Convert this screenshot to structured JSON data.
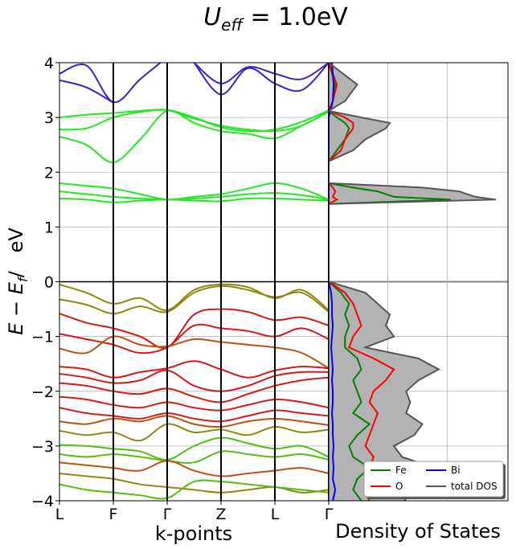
{
  "chart_data": [
    {
      "type": "line",
      "panel": "band-structure",
      "title_prefix": "U",
      "title_sub": "eff",
      "title_suffix": " = 1.0eV",
      "xlabel": "k-points",
      "ylabel": "E − E",
      "ylabel_sub": "f",
      "ylabel_unit": "/   eV",
      "ylim": [
        -4,
        4
      ],
      "yticks": [
        -4,
        -3,
        -2,
        -1,
        0,
        1,
        2,
        3,
        4
      ],
      "kpoint_labels": [
        "L",
        "F",
        "Γ",
        "Z",
        "L",
        "Γ"
      ],
      "kpoint_positions": [
        0,
        1,
        2,
        3,
        4,
        5
      ],
      "fermi_level": 0,
      "grid": true,
      "bands": [
        {
          "color": "#3e1fc8",
          "x": [
            0,
            0.5,
            1,
            1.5,
            2
          ],
          "y": [
            3.8,
            3.95,
            3.28,
            3.7,
            4.1
          ]
        },
        {
          "color": "#3e1fc8",
          "x": [
            0,
            0.5,
            1
          ],
          "y": [
            3.68,
            3.55,
            3.27
          ]
        },
        {
          "color": "#3e1fc8",
          "x": [
            2.5,
            3,
            3.5,
            4,
            4.5,
            5
          ],
          "y": [
            4.0,
            3.42,
            3.9,
            3.62,
            3.5,
            4.0
          ]
        },
        {
          "color": "#3e1fc8",
          "x": [
            2.5,
            3,
            3.5,
            4,
            4.5,
            5
          ],
          "y": [
            4.0,
            3.62,
            3.92,
            3.8,
            3.7,
            4.0
          ]
        },
        {
          "color": "#20ea20",
          "x": [
            0,
            0.5,
            1,
            1.5,
            2,
            2.5,
            3,
            3.5,
            4,
            4.5,
            5
          ],
          "y": [
            3.0,
            3.05,
            3.08,
            3.12,
            3.14,
            3.0,
            2.82,
            2.75,
            2.78,
            2.92,
            3.13
          ]
        },
        {
          "color": "#20ea20",
          "x": [
            0,
            0.5,
            1,
            1.5,
            2,
            2.5,
            3,
            3.5,
            4,
            4.5,
            5
          ],
          "y": [
            2.78,
            2.8,
            3.0,
            3.1,
            3.13,
            2.98,
            2.85,
            2.78,
            2.75,
            2.85,
            3.12
          ]
        },
        {
          "color": "#20ea20",
          "x": [
            0,
            0.5,
            1,
            1.5,
            2,
            2.5,
            3,
            3.5,
            4,
            4.5,
            5
          ],
          "y": [
            2.65,
            2.5,
            2.18,
            2.6,
            3.12,
            2.9,
            2.75,
            2.7,
            2.62,
            2.85,
            3.1
          ]
        },
        {
          "color": "#20ea20",
          "x": [
            0,
            0.5,
            1,
            1.5,
            2,
            2.5,
            3,
            3.5,
            4,
            4.5,
            5
          ],
          "y": [
            1.8,
            1.75,
            1.7,
            1.6,
            1.5,
            1.55,
            1.6,
            1.7,
            1.8,
            1.7,
            1.5
          ]
        },
        {
          "color": "#20ea20",
          "x": [
            0,
            0.5,
            1,
            1.5,
            2,
            2.5,
            3,
            3.5,
            4,
            4.5,
            5
          ],
          "y": [
            1.65,
            1.6,
            1.55,
            1.52,
            1.5,
            1.52,
            1.55,
            1.6,
            1.62,
            1.58,
            1.5
          ]
        },
        {
          "color": "#20ea20",
          "x": [
            0,
            0.5,
            1,
            1.5,
            2,
            2.5,
            3,
            3.5,
            4,
            4.5,
            5
          ],
          "y": [
            1.52,
            1.5,
            1.45,
            1.48,
            1.5,
            1.48,
            1.47,
            1.52,
            1.52,
            1.5,
            1.48
          ]
        },
        {
          "color": "#8a8a10",
          "x": [
            0,
            0.5,
            1,
            1.5,
            2,
            2.5,
            3,
            3.5,
            4,
            4.5,
            5
          ],
          "y": [
            -0.05,
            -0.2,
            -0.4,
            -0.3,
            -0.52,
            -0.15,
            -0.05,
            -0.1,
            -0.3,
            -0.15,
            -0.52
          ]
        },
        {
          "color": "#8a8a10",
          "x": [
            0,
            0.5,
            1,
            1.5,
            2,
            2.5,
            3,
            3.5,
            4,
            4.5,
            5
          ],
          "y": [
            -0.32,
            -0.42,
            -0.58,
            -0.45,
            -0.55,
            -0.2,
            -0.08,
            -0.15,
            -0.28,
            -0.2,
            -0.55
          ]
        },
        {
          "color": "#d81818",
          "x": [
            0,
            0.5,
            1,
            1.5,
            2,
            2.5,
            3,
            3.5,
            4,
            4.5,
            5
          ],
          "y": [
            -0.58,
            -0.75,
            -0.85,
            -1.0,
            -1.2,
            -0.6,
            -0.5,
            -0.55,
            -0.7,
            -0.65,
            -0.8
          ]
        },
        {
          "color": "#d81818",
          "x": [
            0,
            0.5,
            1,
            1.5,
            2,
            2.5,
            3,
            3.5,
            4,
            4.5,
            5
          ],
          "y": [
            -0.95,
            -1.05,
            -1.15,
            -1.3,
            -1.2,
            -0.8,
            -0.85,
            -0.9,
            -1.0,
            -0.85,
            -1.05
          ]
        },
        {
          "color": "#c05010",
          "x": [
            0,
            0.5,
            1,
            1.5,
            2,
            2.5,
            3,
            3.5,
            4,
            4.5,
            5
          ],
          "y": [
            -1.22,
            -1.3,
            -1.0,
            -1.15,
            -1.18,
            -1.05,
            -1.1,
            -1.15,
            -1.2,
            -1.3,
            -1.58
          ]
        },
        {
          "color": "#d81818",
          "x": [
            0,
            0.5,
            1,
            1.5,
            2,
            2.5,
            3,
            3.5,
            4,
            4.5,
            5
          ],
          "y": [
            -1.55,
            -1.6,
            -1.75,
            -1.65,
            -1.58,
            -1.45,
            -1.6,
            -1.75,
            -1.62,
            -1.55,
            -1.58
          ]
        },
        {
          "color": "#d81818",
          "x": [
            0,
            0.5,
            1,
            1.5,
            2,
            2.5,
            3,
            3.5,
            4,
            4.5,
            5
          ],
          "y": [
            -1.68,
            -1.75,
            -1.85,
            -1.8,
            -1.62,
            -1.9,
            -2.0,
            -1.9,
            -1.72,
            -1.65,
            -1.65
          ]
        },
        {
          "color": "#d81818",
          "x": [
            0,
            0.5,
            1,
            1.5,
            2,
            2.5,
            3,
            3.5,
            4,
            4.5,
            5
          ],
          "y": [
            -1.85,
            -1.9,
            -2.0,
            -2.05,
            -1.95,
            -2.1,
            -2.2,
            -2.05,
            -1.9,
            -1.8,
            -1.75
          ]
        },
        {
          "color": "#d81818",
          "x": [
            0,
            0.5,
            1,
            1.5,
            2,
            2.5,
            3,
            3.5,
            4,
            4.5,
            5
          ],
          "y": [
            -2.1,
            -2.15,
            -2.25,
            -2.3,
            -2.2,
            -2.3,
            -2.35,
            -2.25,
            -2.15,
            -2.2,
            -2.3
          ]
        },
        {
          "color": "#d81818",
          "x": [
            0,
            0.5,
            1,
            1.5,
            2,
            2.5,
            3,
            3.5,
            4,
            4.5,
            5
          ],
          "y": [
            -2.3,
            -2.4,
            -2.45,
            -2.5,
            -2.4,
            -2.5,
            -2.55,
            -2.45,
            -2.35,
            -2.4,
            -2.45
          ]
        },
        {
          "color": "#c05010",
          "x": [
            0,
            0.5,
            1,
            1.5,
            2,
            2.5,
            3,
            3.5,
            4,
            4.5,
            5
          ],
          "y": [
            -2.55,
            -2.6,
            -2.5,
            -2.55,
            -2.45,
            -2.6,
            -2.65,
            -2.55,
            -2.5,
            -2.55,
            -2.62
          ]
        },
        {
          "color": "#8a8a10",
          "x": [
            0,
            0.5,
            1,
            1.5,
            2,
            2.5,
            3,
            3.5,
            4,
            4.5,
            5
          ],
          "y": [
            -2.72,
            -2.8,
            -2.75,
            -2.9,
            -2.6,
            -2.75,
            -2.7,
            -2.8,
            -2.65,
            -2.75,
            -2.7
          ]
        },
        {
          "color": "#50c010",
          "x": [
            0,
            0.5,
            1,
            1.5,
            2,
            2.5,
            3,
            3.5,
            4,
            4.5,
            5
          ],
          "y": [
            -2.98,
            -3.0,
            -3.05,
            -3.1,
            -3.25,
            -3.0,
            -2.85,
            -2.95,
            -3.05,
            -3.0,
            -3.2
          ]
        },
        {
          "color": "#50c010",
          "x": [
            0,
            0.5,
            1,
            1.5,
            2,
            2.5,
            3,
            3.5,
            4,
            4.5,
            5
          ],
          "y": [
            -3.15,
            -3.2,
            -3.15,
            -3.2,
            -3.27,
            -3.3,
            -3.1,
            -3.15,
            -3.2,
            -3.15,
            -3.25
          ]
        },
        {
          "color": "#c05010",
          "x": [
            0,
            0.5,
            1,
            1.5,
            2,
            2.5,
            3,
            3.5,
            4,
            4.5,
            5
          ],
          "y": [
            -3.3,
            -3.35,
            -3.4,
            -3.45,
            -3.27,
            -3.45,
            -3.55,
            -3.5,
            -3.45,
            -3.4,
            -3.5
          ]
        },
        {
          "color": "#8a8a10",
          "x": [
            0,
            0.5,
            1,
            1.5,
            2,
            2.5,
            3,
            3.5,
            4,
            4.5,
            5
          ],
          "y": [
            -3.5,
            -3.55,
            -3.6,
            -3.7,
            -3.75,
            -3.8,
            -3.85,
            -3.8,
            -3.75,
            -3.85,
            -3.8
          ]
        },
        {
          "color": "#50c010",
          "x": [
            0,
            0.5,
            1,
            1.5,
            2,
            2.5,
            3,
            3.5,
            4,
            4.5,
            5
          ],
          "y": [
            -3.7,
            -3.8,
            -3.85,
            -3.9,
            -3.95,
            -3.65,
            -3.65,
            -3.7,
            -3.75,
            -3.8,
            -3.85
          ]
        }
      ]
    },
    {
      "type": "area",
      "panel": "density-of-states",
      "xlabel": "Density of States",
      "ylim": [
        -4,
        4
      ],
      "grid": true,
      "legend_position": "bottom-right",
      "energy": [
        -4.0,
        -3.8,
        -3.6,
        -3.4,
        -3.2,
        -3.0,
        -2.8,
        -2.6,
        -2.4,
        -2.2,
        -2.0,
        -1.8,
        -1.6,
        -1.4,
        -1.2,
        -1.0,
        -0.8,
        -0.6,
        -0.4,
        -0.2,
        0.0,
        1.42,
        1.5,
        1.55,
        1.65,
        1.72,
        1.8,
        2.2,
        2.4,
        2.6,
        2.8,
        2.9,
        3.0,
        3.12,
        3.3,
        3.6,
        4.0
      ],
      "series": [
        {
          "name": "Fe",
          "color": "#008000",
          "values": [
            0.4,
            0.3,
            0.35,
            0.5,
            0.3,
            0.25,
            0.35,
            0.5,
            0.3,
            0.4,
            0.35,
            0.3,
            0.4,
            0.35,
            0.2,
            0.2,
            0.25,
            0.2,
            0.25,
            0.15,
            0.0,
            0.0,
            1.5,
            0.8,
            0.6,
            0.3,
            0.0,
            0.0,
            0.1,
            0.2,
            0.25,
            0.2,
            0.1,
            0.0,
            0.05,
            0.08,
            0.0
          ]
        },
        {
          "name": "O",
          "color": "#ff0000",
          "values": [
            0.5,
            0.45,
            0.6,
            0.5,
            0.55,
            0.45,
            0.5,
            0.55,
            0.6,
            0.5,
            0.55,
            0.7,
            0.8,
            0.55,
            0.25,
            0.3,
            0.4,
            0.35,
            0.3,
            0.2,
            0.0,
            0.0,
            0.1,
            0.05,
            0.08,
            0.05,
            0.0,
            0.0,
            0.15,
            0.2,
            0.3,
            0.3,
            0.2,
            0.0,
            0.05,
            0.1,
            0.0
          ]
        },
        {
          "name": "Bi",
          "color": "#0000ff",
          "values": [
            0.05,
            0.08,
            0.05,
            0.06,
            0.05,
            0.06,
            0.05,
            0.05,
            0.04,
            0.05,
            0.05,
            0.04,
            0.05,
            0.04,
            0.03,
            0.04,
            0.05,
            0.04,
            0.04,
            0.03,
            0.0,
            0.0,
            0.0,
            0.0,
            0.0,
            0.0,
            0.0,
            0.0,
            0.0,
            0.0,
            0.0,
            0.0,
            0.0,
            0.02,
            0.05,
            0.06,
            0.04
          ]
        },
        {
          "name": "total DOS",
          "color": "#555555",
          "values": [
            0.95,
            0.85,
            1.1,
            1.3,
            0.9,
            0.8,
            1.05,
            1.15,
            0.95,
            1.0,
            0.95,
            1.1,
            1.35,
            1.1,
            0.45,
            0.8,
            0.7,
            0.75,
            0.6,
            0.45,
            0.0,
            0.0,
            2.05,
            1.8,
            1.6,
            1.15,
            0.0,
            0.0,
            0.3,
            0.45,
            0.7,
            0.75,
            0.4,
            0.0,
            0.2,
            0.35,
            0.0
          ]
        }
      ]
    }
  ]
}
